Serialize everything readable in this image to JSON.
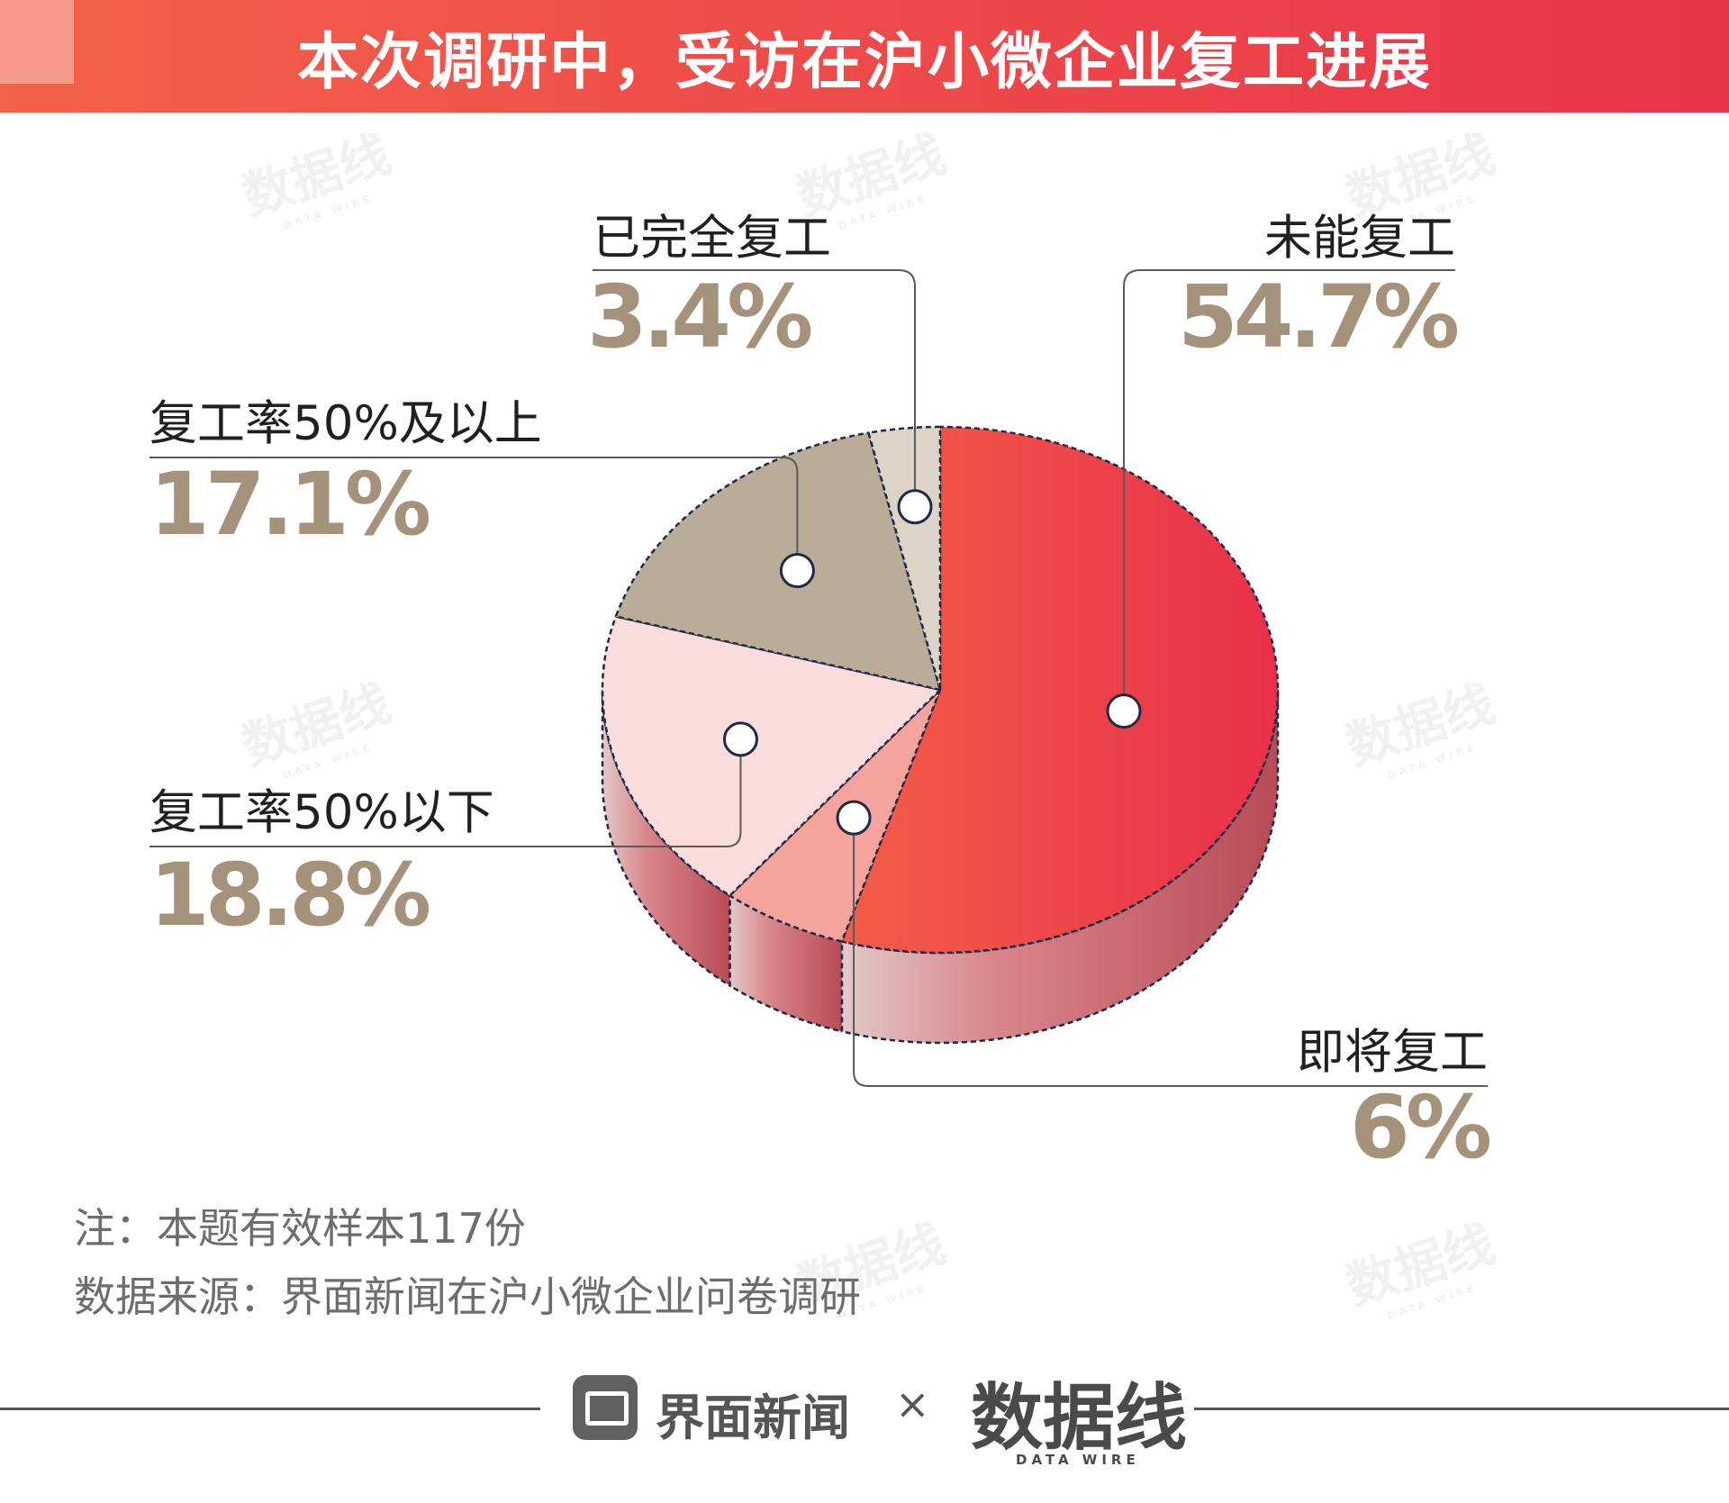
{
  "title": "本次调研中，受访在沪小微企业复工进展",
  "watermark": {
    "text": "数据线",
    "sub": "DATA WIRE"
  },
  "chart_data": {
    "type": "pie",
    "style": "3d",
    "slices": [
      {
        "label": "未能复工",
        "value": 54.7,
        "display": "54.7%",
        "color": "#ea3d4a"
      },
      {
        "label": "即将复工",
        "value": 6,
        "display": "6%",
        "color": "#f5a39d"
      },
      {
        "label": "复工率50%以下",
        "value": 18.8,
        "display": "18.8%",
        "color": "#fadcdc"
      },
      {
        "label": "复工率50%及以上",
        "value": 17.1,
        "display": "17.1%",
        "color": "#b9ad97"
      },
      {
        "label": "已完全复工",
        "value": 3.4,
        "display": "3.4%",
        "color": "#dcd5c7"
      }
    ]
  },
  "notes": {
    "note": "注：本题有效样本117份",
    "source": "数据来源：界面新闻在沪小微企业问卷调研"
  },
  "footer": {
    "brand1": "界面新闻",
    "separator": "×",
    "brand2": "数据线",
    "brand2_sub": "DATA WIRE"
  }
}
